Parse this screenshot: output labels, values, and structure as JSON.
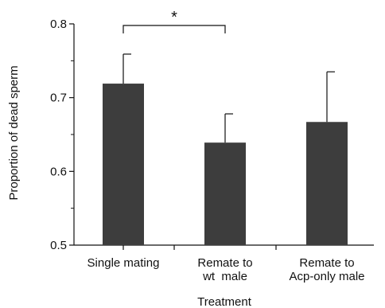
{
  "chart_data": {
    "type": "bar",
    "title": "",
    "xlabel": "Treatment",
    "ylabel": "Proportion of dead sperm",
    "ylim": [
      0.5,
      0.8
    ],
    "yticks": [
      "0.5",
      "0.6",
      "0.7",
      "0.8"
    ],
    "categories": [
      [
        "Single mating"
      ],
      [
        "Remate to",
        "wt  male"
      ],
      [
        "Remate to",
        "Acp-only male"
      ]
    ],
    "values": [
      0.719,
      0.639,
      0.667
    ],
    "error_upper": [
      0.759,
      0.678,
      0.735
    ],
    "bar_color": "#3d3d3d",
    "significance": {
      "between": [
        0,
        1
      ],
      "label": "*"
    },
    "grid": false
  }
}
